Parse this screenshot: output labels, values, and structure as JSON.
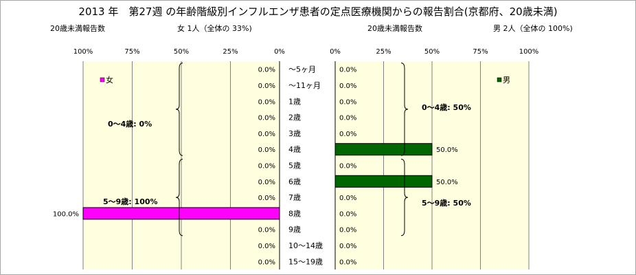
{
  "title": "2013 年　第27週 の年齢階級別インフルエンザ患者の定点医療機関からの報告割合(京都府、20歳未満)",
  "left_header": {
    "label": "20歳未満報告数",
    "summary": "女  1人（全体の  33%)"
  },
  "right_header": {
    "label": "20歳未満報告数",
    "summary": "男  2人（全体の  100%)"
  },
  "colors": {
    "female": "#ff00ff",
    "male": "#006600",
    "plot_bg": "#ffffe0",
    "grid": "#808080"
  },
  "chart_data": [
    {
      "type": "bar",
      "orientation": "horizontal",
      "direction": "right-to-left",
      "categories": [
        "～5ヶ月",
        "～11ヶ月",
        "1歳",
        "2歳",
        "3歳",
        "4歳",
        "5歳",
        "6歳",
        "7歳",
        "8歳",
        "9歳",
        "10～14歳",
        "15～19歳"
      ],
      "series": [
        {
          "name": "女",
          "values": [
            0,
            0,
            0,
            0,
            0,
            0,
            0,
            0,
            0,
            100,
            0,
            0,
            0
          ]
        }
      ],
      "value_labels": [
        "0.0%",
        "0.0%",
        "0.0%",
        "0.0%",
        "0.0%",
        "0.0%",
        "0.0%",
        "0.0%",
        "0.0%",
        "100.0%",
        "0.0%",
        "0.0%",
        "0.0%"
      ],
      "xlim": [
        0,
        100
      ],
      "ticks": [
        "100%",
        "75%",
        "50%",
        "25%",
        "0%"
      ],
      "legend": "top-left",
      "grid": true,
      "group_labels": [
        "0～4歳:  0%",
        "5～9歳: 100%"
      ]
    },
    {
      "type": "bar",
      "orientation": "horizontal",
      "direction": "left-to-right",
      "categories": [
        "～5ヶ月",
        "～11ヶ月",
        "1歳",
        "2歳",
        "3歳",
        "4歳",
        "5歳",
        "6歳",
        "7歳",
        "8歳",
        "9歳",
        "10～14歳",
        "15～19歳"
      ],
      "series": [
        {
          "name": "男",
          "values": [
            0,
            0,
            0,
            0,
            0,
            50,
            0,
            50,
            0,
            0,
            0,
            0,
            0
          ]
        }
      ],
      "value_labels": [
        "0.0%",
        "0.0%",
        "0.0%",
        "0.0%",
        "0.0%",
        "50.0%",
        "0.0%",
        "50.0%",
        "0.0%",
        "0.0%",
        "0.0%",
        "0.0%",
        "0.0%"
      ],
      "xlim": [
        0,
        100
      ],
      "ticks": [
        "0%",
        "25%",
        "50%",
        "75%",
        "100%"
      ],
      "legend": "top-right",
      "grid": true,
      "group_labels": [
        "0～4歳: 50%",
        "5～9歳: 50%"
      ]
    }
  ]
}
